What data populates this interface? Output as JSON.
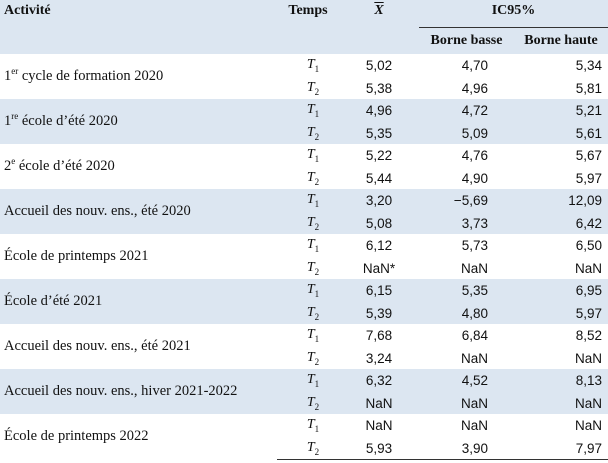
{
  "headers": {
    "activity": "Activité",
    "time": "Temps",
    "mean": "X",
    "ci": "IC95%",
    "lower": "Borne basse",
    "upper": "Borne haute"
  },
  "rows": [
    {
      "pre": "1",
      "sup": "er",
      "post": " cycle de formation 2020",
      "t1": {
        "x": "5,02",
        "lo": "4,70",
        "hi": "5,34"
      },
      "t2": {
        "x": "5,38",
        "lo": "4,96",
        "hi": "5,81"
      }
    },
    {
      "pre": "1",
      "sup": "re",
      "post": " école d’été 2020",
      "t1": {
        "x": "4,96",
        "lo": "4,72",
        "hi": "5,21"
      },
      "t2": {
        "x": "5,35",
        "lo": "5,09",
        "hi": "5,61"
      }
    },
    {
      "pre": "2",
      "sup": "e",
      "post": " école d’été 2020",
      "t1": {
        "x": "5,22",
        "lo": "4,76",
        "hi": "5,67"
      },
      "t2": {
        "x": "5,44",
        "lo": "4,90",
        "hi": "5,97"
      }
    },
    {
      "pre": "Accueil des nouv. ens., été 2020",
      "sup": "",
      "post": "",
      "t1": {
        "x": "3,20",
        "lo": "−5,69",
        "hi": "12,09"
      },
      "t2": {
        "x": "5,08",
        "lo": "3,73",
        "hi": "6,42"
      }
    },
    {
      "pre": "École de printemps 2021",
      "sup": "",
      "post": "",
      "t1": {
        "x": "6,12",
        "lo": "5,73",
        "hi": "6,50"
      },
      "t2": {
        "x": "NaN*",
        "lo": "NaN",
        "hi": "NaN"
      }
    },
    {
      "pre": "École d’été 2021",
      "sup": "",
      "post": "",
      "t1": {
        "x": "6,15",
        "lo": "5,35",
        "hi": "6,95"
      },
      "t2": {
        "x": "5,39",
        "lo": "4,80",
        "hi": "5,97"
      }
    },
    {
      "pre": "Accueil des nouv. ens., été 2021",
      "sup": "",
      "post": "",
      "t1": {
        "x": "7,68",
        "lo": "6,84",
        "hi": "8,52"
      },
      "t2": {
        "x": "3,24",
        "lo": "NaN",
        "hi": "NaN"
      }
    },
    {
      "pre": "Accueil des nouv. ens., hiver 2021-2022",
      "sup": "",
      "post": "",
      "t1": {
        "x": "6,32",
        "lo": "4,52",
        "hi": "8,13"
      },
      "t2": {
        "x": "NaN",
        "lo": "NaN",
        "hi": "NaN"
      }
    },
    {
      "pre": "École de printemps 2022",
      "sup": "",
      "post": "",
      "t1": {
        "x": "NaN",
        "lo": "NaN",
        "hi": "NaN"
      },
      "t2": {
        "x": "5,93",
        "lo": "3,90",
        "hi": "7,97"
      }
    }
  ],
  "time_labels": {
    "letter": "T",
    "s1": "1",
    "s2": "2"
  }
}
